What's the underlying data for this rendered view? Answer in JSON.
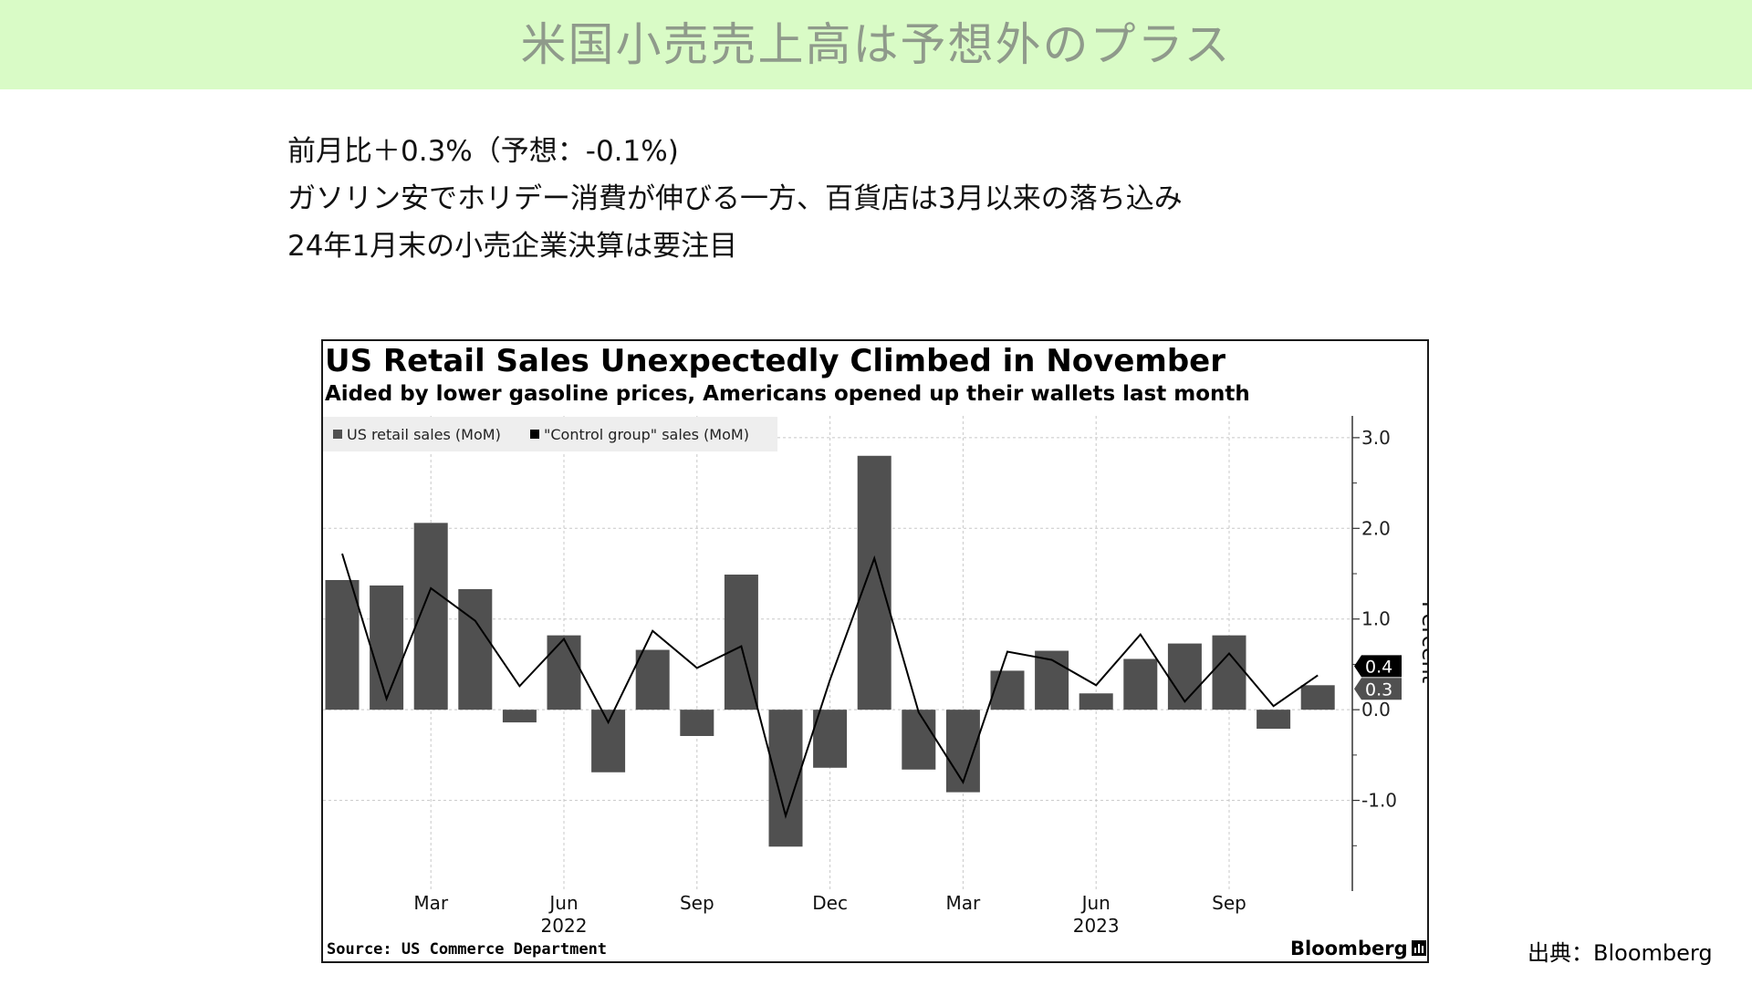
{
  "slide": {
    "title": "米国小売売上高は予想外のプラス",
    "bullets": [
      "前月比＋0.3%（予想：-0.1%)",
      "ガソリン安でホリデー消費が伸びる一方、百貨店は3月以来の落ち込み",
      "24年1月末の小売企業決算は要注目"
    ],
    "credit": "出典：Bloomberg",
    "banner_color": "#d9fbc6",
    "title_color": "#8f9a8b"
  },
  "chart_data": {
    "type": "bar",
    "title": "US Retail Sales Unexpectedly Climbed in November",
    "subtitle": "Aided by lower gasoline prices, Americans opened up their wallets last month",
    "ylabel": "Percent",
    "ylim": [
      -2.0,
      3.2
    ],
    "yticks": [
      3.0,
      2.0,
      1.0,
      0.0,
      -1.0
    ],
    "ytick_labels": [
      "3.0",
      "2.0",
      "1.0",
      "0.0",
      "-1.0"
    ],
    "x_month_labels": [
      {
        "label": "Mar",
        "index": 2
      },
      {
        "label": "Jun",
        "index": 5
      },
      {
        "label": "Sep",
        "index": 8
      },
      {
        "label": "Dec",
        "index": 11
      },
      {
        "label": "Mar",
        "index": 14
      },
      {
        "label": "Jun",
        "index": 17
      },
      {
        "label": "Sep",
        "index": 20
      }
    ],
    "x_year_labels": [
      {
        "label": "2022",
        "index": 5
      },
      {
        "label": "2023",
        "index": 17
      }
    ],
    "categories": [
      "Jan 2022",
      "Feb 2022",
      "Mar 2022",
      "Apr 2022",
      "May 2022",
      "Jun 2022",
      "Jul 2022",
      "Aug 2022",
      "Sep 2022",
      "Oct 2022",
      "Nov 2022",
      "Dec 2022",
      "Jan 2023",
      "Feb 2023",
      "Mar 2023",
      "Apr 2023",
      "May 2023",
      "Jun 2023",
      "Jul 2023",
      "Aug 2023",
      "Sep 2023",
      "Oct 2023",
      "Nov 2023"
    ],
    "series": [
      {
        "name": "US retail sales (MoM)",
        "kind": "bar",
        "color": "#505050",
        "values": [
          1.43,
          1.37,
          2.06,
          1.33,
          -0.14,
          0.82,
          -0.69,
          0.66,
          -0.29,
          1.49,
          -1.51,
          -0.64,
          2.8,
          -0.66,
          -0.91,
          0.43,
          0.65,
          0.18,
          0.56,
          0.73,
          0.82,
          -0.21,
          0.27
        ]
      },
      {
        "name": "\"Control group\" sales (MoM)",
        "kind": "line",
        "color": "#000000",
        "values": [
          1.72,
          0.12,
          1.34,
          0.98,
          0.26,
          0.78,
          -0.14,
          0.87,
          0.46,
          0.7,
          -1.17,
          0.33,
          1.67,
          -0.03,
          -0.8,
          0.64,
          0.55,
          0.27,
          0.83,
          0.09,
          0.62,
          0.04,
          0.38
        ]
      }
    ],
    "end_labels": [
      {
        "series": 1,
        "text": "0.4",
        "color": "#000000"
      },
      {
        "series": 0,
        "text": "0.3",
        "color": "#505050"
      }
    ],
    "grid": true,
    "legend_position": "top-left",
    "source": "Source: US Commerce Department",
    "brand": "Bloomberg"
  }
}
